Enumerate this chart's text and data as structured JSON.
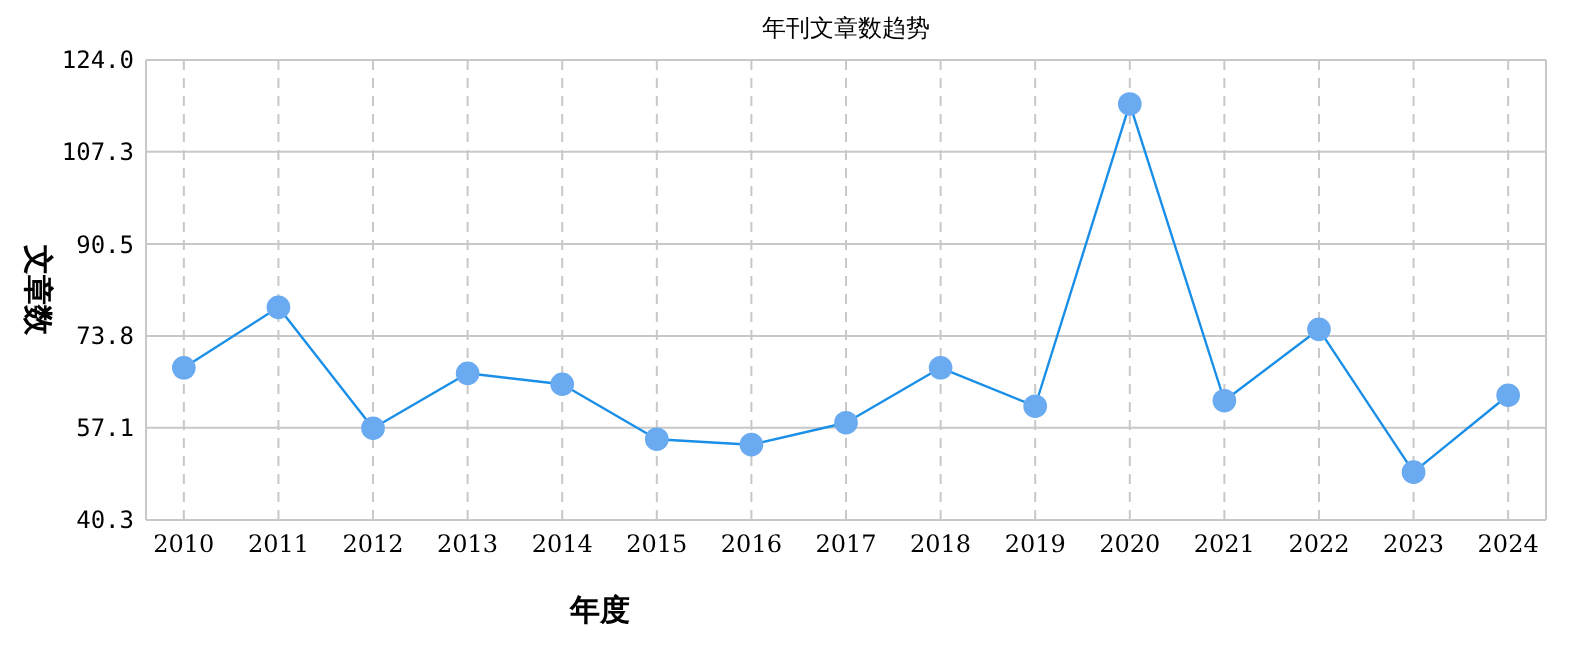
{
  "chart_data": {
    "type": "line",
    "title": "年刊文章数趋势",
    "xlabel": "年度",
    "ylabel": "文章数",
    "categories": [
      "2010",
      "2011",
      "2012",
      "2013",
      "2014",
      "2015",
      "2016",
      "2017",
      "2018",
      "2019",
      "2020",
      "2021",
      "2022",
      "2023",
      "2024"
    ],
    "series": [
      {
        "color": "#1a8fe8",
        "values": [
          68,
          79,
          57,
          67,
          65,
          55,
          54,
          58,
          68,
          61,
          116,
          62,
          75,
          49,
          63
        ]
      }
    ],
    "ylim": [
      40.3,
      124.0
    ],
    "yticks": [
      {
        "value": 40.3,
        "label": "40.3"
      },
      {
        "value": 57.1,
        "label": "57.1"
      },
      {
        "value": 73.8,
        "label": "73.8"
      },
      {
        "value": 90.5,
        "label": "90.5"
      },
      {
        "value": 107.3,
        "label": "107.3"
      },
      {
        "value": 124.0,
        "label": "124.0"
      }
    ],
    "grid": true,
    "marker": "circle",
    "line_style": "solid"
  }
}
